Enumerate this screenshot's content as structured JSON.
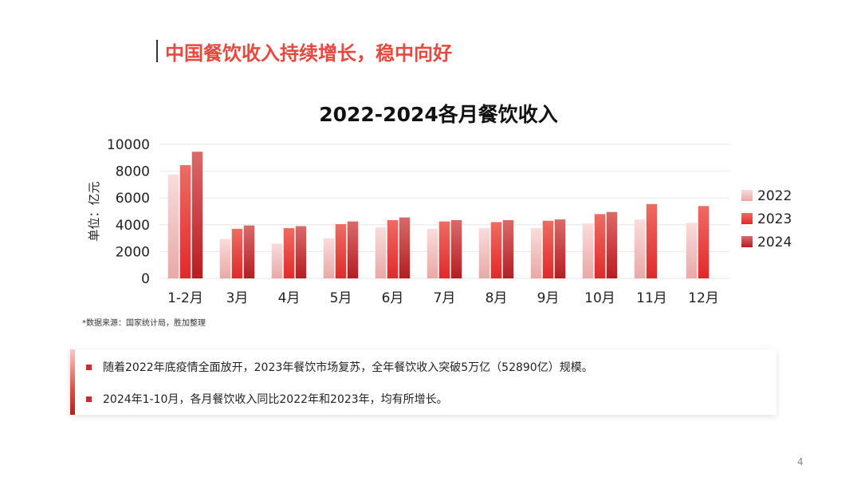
{
  "heading": "中国餐饮收入持续增长，稳中向好",
  "chart_data": {
    "type": "bar",
    "title": "2022-2024各月餐饮收入",
    "ylabel": "单位：亿元",
    "xlabel": "",
    "categories": [
      "1-2月",
      "3月",
      "4月",
      "5月",
      "6月",
      "7月",
      "8月",
      "9月",
      "10月",
      "11月",
      "12月"
    ],
    "series": [
      {
        "name": "2022",
        "values": [
          7750,
          2950,
          2600,
          3000,
          3800,
          3700,
          3750,
          3750,
          4100,
          4400,
          4150
        ]
      },
      {
        "name": "2023",
        "values": [
          8450,
          3700,
          3750,
          4050,
          4350,
          4250,
          4200,
          4300,
          4800,
          5550,
          5400
        ]
      },
      {
        "name": "2024",
        "values": [
          9450,
          3950,
          3900,
          4250,
          4550,
          4350,
          4350,
          4400,
          4950,
          null,
          null
        ]
      }
    ],
    "ylim": [
      0,
      10000
    ],
    "yticks": [
      0,
      2000,
      4000,
      6000,
      8000,
      10000
    ],
    "grid": true,
    "legend": "right",
    "colors": {
      "2022": [
        "#F9DCDB",
        "#E9A8A6"
      ],
      "2023": [
        "#F06B63",
        "#E02A2A"
      ],
      "2024": [
        "#D96A69",
        "#B41E22"
      ]
    }
  },
  "source_note": "*数据来源：国家统计局，胜加整理",
  "bullets": [
    "随着2022年底疫情全面放开，2023年餐饮市场复苏，全年餐饮收入突破5万亿（52890亿）规模。",
    "2024年1-10月，各月餐饮收入同比2022年和2023年，均有所增长。"
  ],
  "page_number": "4"
}
